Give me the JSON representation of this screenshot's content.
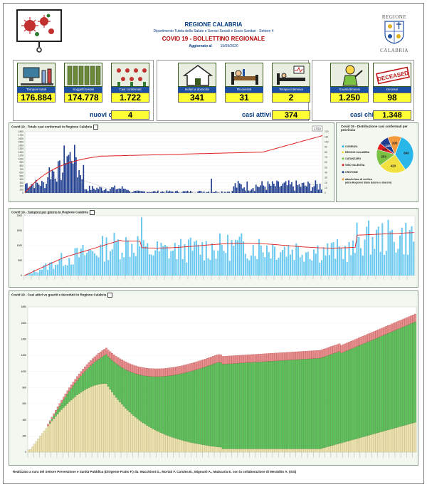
{
  "header": {
    "region": "REGIONE CALABRIA",
    "department": "Dipartimento Tutela della Salute e Servizi Sociali e Socio-Sanitari - Settore 4",
    "title": "COVID 19 - BOLLETTINO REGIONALE",
    "updated_label": "Aggiornato al",
    "updated_date": "15/09/2020",
    "logo_text_top": "REGIONE",
    "logo_text_bottom": "CALABRIA"
  },
  "stats": {
    "tamponi": {
      "label": "Tamponi totali",
      "value": "176.884"
    },
    "testati": {
      "label": "Soggetti testati",
      "value": "174.778"
    },
    "confermati": {
      "label": "Casi confermati",
      "value": "1.722"
    },
    "nuovi": {
      "label": "nuovi casi",
      "value": "4"
    },
    "domicilio": {
      "label": "Isolati a domicilio",
      "value": "341"
    },
    "ricoverati": {
      "label": "Ricoverati",
      "value": "31"
    },
    "intensiva": {
      "label": "Terapia intensiva",
      "value": "2"
    },
    "attivi": {
      "label": "casi attivi",
      "value": "374"
    },
    "guariti": {
      "label": "Guariti/dimessi",
      "value": "1.250"
    },
    "decessi": {
      "label": "Decessi",
      "value": "98"
    },
    "chiusi": {
      "label": "casi chiusi",
      "value": "1.348"
    },
    "deceased_stamp": "DECEASED"
  },
  "panel1": {
    "title": "Covid 19 - Totale casi confermati in Regione Calabria",
    "legend": [
      "casi confermati per giorno",
      "totale casi confermati (dati aggregati cumulati)",
      "Trend Media Mobile (casi confermati per giorno)"
    ],
    "last_value": "1722",
    "y_left": [
      "0",
      "100",
      "200",
      "300",
      "400",
      "500",
      "600",
      "700",
      "800",
      "900",
      "1000",
      "1100",
      "1200",
      "1300",
      "1400",
      "1500",
      "1600",
      "1700",
      "1800"
    ],
    "y_right": [
      "0",
      "10",
      "20",
      "30",
      "40",
      "50",
      "60",
      "70",
      "80",
      "90",
      "100",
      "110",
      "120"
    ]
  },
  "pie": {
    "title": "Covid 19 - Distribuzione casi confermati per provincia",
    "provinces": [
      {
        "name": "COSENZA",
        "value": "600",
        "color": "#29b6e8"
      },
      {
        "name": "REGGIO CALABRIA",
        "value": "420",
        "color": "#f0e040"
      },
      {
        "name": "CATANZARO",
        "value": "253",
        "color": "#7cc242"
      },
      {
        "name": "VIBO VALENTIA",
        "value": "100",
        "color": "#e02020"
      },
      {
        "name": "CROTONE",
        "value": "144",
        "color": "#1e3d8f"
      },
      {
        "name": "altra/in fase di verifica (altra Regione/ Stato Estero e sbarchi)",
        "value": "205",
        "color": "#f29a3c"
      }
    ]
  },
  "panel2": {
    "title": "Covid 19 - Tamponi per giorno in Regione Calabria",
    "legend": [
      "Tamponi per giorno",
      "Media mobile a 7 giorni"
    ],
    "y_ticks": [
      "0",
      "500",
      "1000",
      "1500",
      "2000"
    ]
  },
  "panel3": {
    "title": "Covid 19 - Casi attivi vs guariti e decedutii in Regione Calabria",
    "legend": [
      "Decessi",
      "Clinicamente guariti",
      "casi attivi"
    ],
    "y_ticks": [
      "0",
      "200",
      "400",
      "600",
      "800",
      "1000",
      "1200",
      "1400",
      "1600",
      "1800"
    ]
  },
  "footer": "Realizzato a cura del Settore Prevenzione e Sanità Pubblica (Dirigente Fratto F.) da: Macchioni D., Mortati F. Carulea B., Mignuoli A., Malacaria E. con la collaborazione di Meraldito A. (ISS)",
  "colors": {
    "navy": "#1e4fa0",
    "yellow": "#ffff33",
    "red": "#e02020",
    "green": "#5fc25a",
    "cream": "#ede3b0",
    "sky": "#6ccaf0"
  }
}
